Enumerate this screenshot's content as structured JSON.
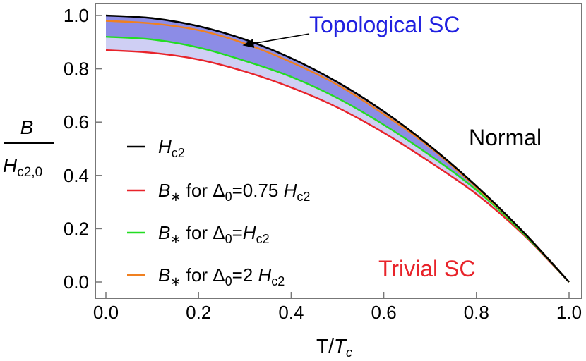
{
  "chart_data": {
    "type": "line",
    "xlabel_main": "T/",
    "xlabel_var": "T",
    "xlabel_sub": "c",
    "ylabel_num": "B",
    "ylabel_den_main": "H",
    "ylabel_den_sub": "c2,0",
    "xlim": [
      0,
      1
    ],
    "ylim": [
      0,
      1
    ],
    "x_ticks": [
      "0.0",
      "0.2",
      "0.4",
      "0.6",
      "0.8",
      "1.0"
    ],
    "y_ticks": [
      "0.0",
      "0.2",
      "0.4",
      "0.6",
      "0.8",
      "1.0"
    ],
    "grid": false,
    "legend_position": "left",
    "regions": {
      "topological": "Topological SC",
      "normal": "Normal",
      "trivial": "Trivial SC"
    },
    "series": [
      {
        "id": "hc2",
        "legend": {
          "sym": "H",
          "sub": "c2",
          "rest": "",
          "d": "",
          "var": "",
          "varsub": ""
        },
        "color": "#000000",
        "x": [
          0,
          0.1,
          0.2,
          0.3,
          0.4,
          0.5,
          0.6,
          0.7,
          0.8,
          0.9,
          1.0
        ],
        "y": [
          1.0,
          0.99,
          0.96,
          0.91,
          0.84,
          0.75,
          0.64,
          0.51,
          0.36,
          0.19,
          0.0
        ]
      },
      {
        "id": "bstar_075",
        "legend": {
          "sym": "B",
          "sub": "∗",
          "rest": " for Δ",
          "d": "0",
          "mid": "=0.75 ",
          "var": "H",
          "varsub": "c2"
        },
        "color": "#e8232a",
        "x": [
          0,
          0.1,
          0.2,
          0.3,
          0.4,
          0.5,
          0.6,
          0.7,
          0.8,
          0.9,
          1.0
        ],
        "y": [
          0.87,
          0.86,
          0.835,
          0.79,
          0.73,
          0.655,
          0.56,
          0.45,
          0.33,
          0.18,
          0.0
        ]
      },
      {
        "id": "bstar_1",
        "legend": {
          "sym": "B",
          "sub": "∗",
          "rest": " for Δ",
          "d": "0",
          "mid": "=",
          "var": "H",
          "varsub": "c2"
        },
        "color": "#22dd22",
        "x": [
          0,
          0.1,
          0.2,
          0.3,
          0.4,
          0.5,
          0.6,
          0.7,
          0.8,
          0.9,
          1.0
        ],
        "y": [
          0.92,
          0.91,
          0.88,
          0.83,
          0.77,
          0.69,
          0.59,
          0.475,
          0.345,
          0.185,
          0.0
        ]
      },
      {
        "id": "bstar_2",
        "legend": {
          "sym": "B",
          "sub": "∗",
          "rest": " for Δ",
          "d": "0",
          "mid": "=2 ",
          "var": "H",
          "varsub": "c2"
        },
        "color": "#f08020",
        "x": [
          0,
          0.1,
          0.2,
          0.3,
          0.4,
          0.5,
          0.6,
          0.7,
          0.8,
          0.9,
          1.0
        ],
        "y": [
          0.98,
          0.97,
          0.945,
          0.895,
          0.825,
          0.74,
          0.63,
          0.505,
          0.355,
          0.19,
          0.0
        ]
      }
    ],
    "fill_colors": {
      "dark": "#8c8ce6",
      "light": "#cfcff4"
    },
    "region_colors": {
      "topological": "#2020e0",
      "normal": "#000000",
      "trivial": "#e8232a"
    }
  }
}
